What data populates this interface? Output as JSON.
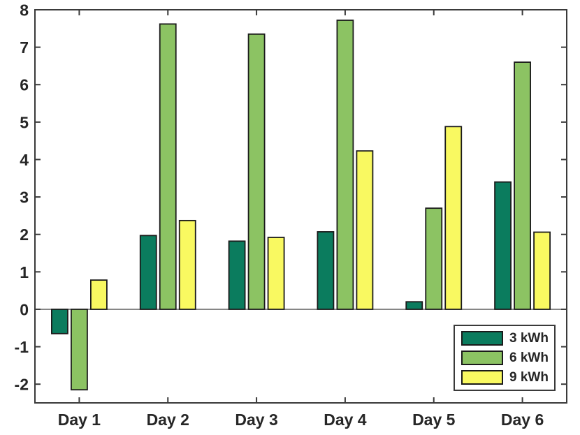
{
  "chart_data": {
    "type": "bar",
    "title": "",
    "xlabel": "",
    "ylabel": "",
    "categories": [
      "Day 1",
      "Day 2",
      "Day 3",
      "Day 4",
      "Day 5",
      "Day 6"
    ],
    "series": [
      {
        "name": "3 kWh",
        "color": "#0b7c5e",
        "values": [
          -0.65,
          1.97,
          1.82,
          2.07,
          0.2,
          3.4
        ]
      },
      {
        "name": "6 kWh",
        "color": "#8cc363",
        "values": [
          -2.15,
          7.62,
          7.35,
          7.72,
          2.7,
          6.6
        ]
      },
      {
        "name": "9 kWh",
        "color": "#f9f961",
        "values": [
          0.78,
          2.37,
          1.92,
          4.23,
          4.88,
          2.06
        ]
      }
    ],
    "ylim": [
      -2.5,
      8
    ],
    "yticks": [
      -2,
      -1,
      0,
      1,
      2,
      3,
      4,
      5,
      6,
      7,
      8
    ],
    "grid": false,
    "legend_position": "bottom-right",
    "colors": {
      "background": "#ffffff",
      "axis": "#3a3a3a",
      "tick_text": "#262626",
      "baseline": "#5f5f5f",
      "bar_edge": "#1a1a1a"
    }
  }
}
